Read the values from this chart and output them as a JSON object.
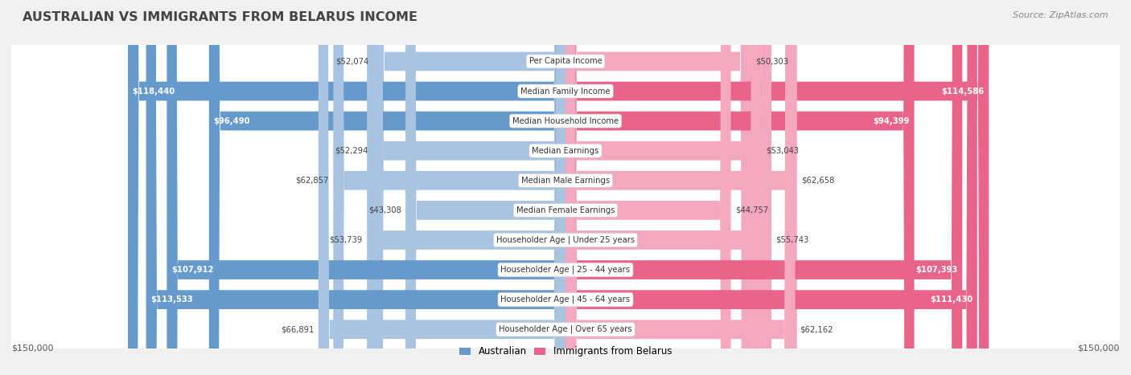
{
  "title": "AUSTRALIAN VS IMMIGRANTS FROM BELARUS INCOME",
  "source": "Source: ZipAtlas.com",
  "max_value": 150000,
  "categories": [
    "Per Capita Income",
    "Median Family Income",
    "Median Household Income",
    "Median Earnings",
    "Median Male Earnings",
    "Median Female Earnings",
    "Householder Age | Under 25 years",
    "Householder Age | 25 - 44 years",
    "Householder Age | 45 - 64 years",
    "Householder Age | Over 65 years"
  ],
  "australian_values": [
    52074,
    118440,
    96490,
    52294,
    62857,
    43308,
    53739,
    107912,
    113533,
    66891
  ],
  "immigrant_values": [
    50303,
    114586,
    94399,
    53043,
    62658,
    44757,
    55743,
    107393,
    111430,
    62162
  ],
  "australian_labels": [
    "$52,074",
    "$118,440",
    "$96,490",
    "$52,294",
    "$62,857",
    "$43,308",
    "$53,739",
    "$107,912",
    "$113,533",
    "$66,891"
  ],
  "immigrant_labels": [
    "$50,303",
    "$114,586",
    "$94,399",
    "$53,043",
    "$62,658",
    "$44,757",
    "$55,743",
    "$107,393",
    "$111,430",
    "$62,162"
  ],
  "color_australian_light": "#a8c4e0",
  "color_australian_dark": "#6699cc",
  "color_immigrant_light": "#f4a8c0",
  "color_immigrant_dark": "#e8648a",
  "threshold": 90000,
  "background_color": "#f0f0f0",
  "row_bg_color": "#ffffff",
  "row_alt_color": "#f8f8f8",
  "legend_australian": "Australian",
  "legend_immigrant": "Immigrants from Belarus",
  "xlabel_left": "$150,000",
  "xlabel_right": "$150,000",
  "title_color": "#444444",
  "source_color": "#888888",
  "label_color_dark": "#444444",
  "label_color_white": "#ffffff"
}
